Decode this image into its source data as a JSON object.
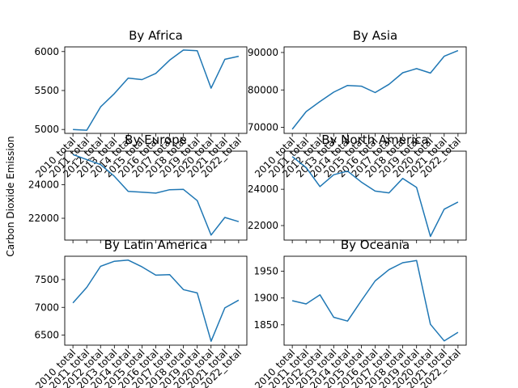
{
  "figure": {
    "ylabel": "Carbon Dioxide Emission"
  },
  "chart_data": [
    {
      "type": "line",
      "title": "By Africa",
      "categories": [
        "2010_total",
        "2011_total",
        "2012_total",
        "2013_total",
        "2014_total",
        "2015_total",
        "2016_total",
        "2017_total",
        "2018_total",
        "2019_total",
        "2020_total",
        "2021_total",
        "2022_total"
      ],
      "series": [
        {
          "values": [
            5000,
            4990,
            5290,
            5460,
            5660,
            5640,
            5720,
            5890,
            6020,
            6010,
            5530,
            5900,
            5940
          ]
        }
      ],
      "color": "#1f77b4",
      "ylim": [
        4950,
        6060
      ],
      "yticks": [
        5000,
        5500,
        6000
      ],
      "ytick_labels": [
        "5000",
        "5500",
        "6000"
      ],
      "show_xtick_labels": true
    },
    {
      "type": "line",
      "title": "By Asia",
      "categories": [
        "2010_total",
        "2011_total",
        "2012_total",
        "2013_total",
        "2014_total",
        "2015_total",
        "2016_total",
        "2017_total",
        "2018_total",
        "2019_total",
        "2020_total",
        "2021_total",
        "2022_total"
      ],
      "series": [
        {
          "values": [
            69500,
            74200,
            76900,
            79400,
            81200,
            81000,
            79300,
            81500,
            84600,
            85700,
            84500,
            89000,
            90500
          ]
        }
      ],
      "color": "#1f77b4",
      "ylim": [
        68400,
        91500
      ],
      "yticks": [
        70000,
        80000,
        90000
      ],
      "ytick_labels": [
        "70000",
        "80000",
        "90000"
      ],
      "show_xtick_labels": true
    },
    {
      "type": "line",
      "title": "By Europe",
      "categories": [
        "2010_total",
        "2011_total",
        "2012_total",
        "2013_total",
        "2014_total",
        "2015_total",
        "2016_total",
        "2017_total",
        "2018_total",
        "2019_total",
        "2020_total",
        "2021_total",
        "2022_total"
      ],
      "series": [
        {
          "values": [
            25800,
            25500,
            25200,
            24500,
            23600,
            23550,
            23500,
            23700,
            23720,
            23050,
            21000,
            22050,
            21800
          ]
        }
      ],
      "color": "#1f77b4",
      "ylim": [
        20700,
        26000
      ],
      "yticks": [
        22000,
        24000
      ],
      "ytick_labels": [
        "22000",
        "24000"
      ],
      "show_xtick_labels": false
    },
    {
      "type": "line",
      "title": "By North America",
      "categories": [
        "2010_total",
        "2011_total",
        "2012_total",
        "2013_total",
        "2014_total",
        "2015_total",
        "2016_total",
        "2017_total",
        "2018_total",
        "2019_total",
        "2020_total",
        "2021_total",
        "2022_total"
      ],
      "series": [
        {
          "values": [
            25800,
            25200,
            24150,
            24800,
            25000,
            24400,
            23900,
            23800,
            24600,
            24100,
            21400,
            22900,
            23300
          ]
        }
      ],
      "color": "#1f77b4",
      "ylim": [
        21200,
        26100
      ],
      "yticks": [
        22000,
        24000
      ],
      "ytick_labels": [
        "22000",
        "24000"
      ],
      "show_xtick_labels": false
    },
    {
      "type": "line",
      "title": "By Latin America",
      "categories": [
        "2010_total",
        "2011_total",
        "2012_total",
        "2013_total",
        "2014_total",
        "2015_total",
        "2016_total",
        "2017_total",
        "2018_total",
        "2019_total",
        "2020_total",
        "2021_total",
        "2022_total"
      ],
      "series": [
        {
          "values": [
            7080,
            7360,
            7740,
            7830,
            7850,
            7730,
            7580,
            7590,
            7320,
            7260,
            6390,
            6990,
            7130
          ]
        }
      ],
      "color": "#1f77b4",
      "ylim": [
        6320,
        7920
      ],
      "yticks": [
        6500,
        7000,
        7500
      ],
      "ytick_labels": [
        "6500",
        "7000",
        "7500"
      ],
      "show_xtick_labels": true
    },
    {
      "type": "line",
      "title": "By Oceania",
      "categories": [
        "2010_total",
        "2011_total",
        "2012_total",
        "2013_total",
        "2014_total",
        "2015_total",
        "2016_total",
        "2017_total",
        "2018_total",
        "2019_total",
        "2020_total",
        "2021_total",
        "2022_total"
      ],
      "series": [
        {
          "values": [
            1895,
            1889,
            1906,
            1864,
            1857,
            1895,
            1932,
            1953,
            1966,
            1970,
            1851,
            1820,
            1836
          ]
        }
      ],
      "color": "#1f77b4",
      "ylim": [
        1812,
        1978
      ],
      "yticks": [
        1850,
        1900,
        1950
      ],
      "ytick_labels": [
        "1850",
        "1900",
        "1950"
      ],
      "show_xtick_labels": true
    }
  ]
}
